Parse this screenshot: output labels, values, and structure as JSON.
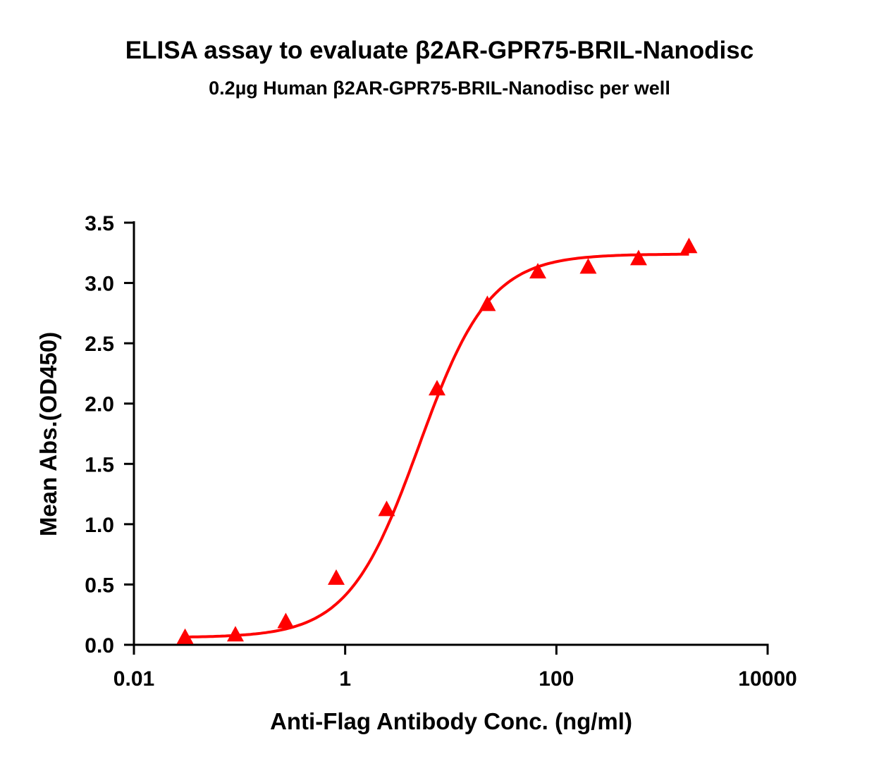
{
  "chart_data": {
    "type": "scatter",
    "title": "ELISA assay to evaluate β2AR-GPR75-BRIL-Nanodisc",
    "subtitle": "0.2µg Human β2AR-GPR75-BRIL-Nanodisc per well",
    "xlabel": "Anti-Flag Antibody Conc. (ng/ml)",
    "ylabel": "Mean Abs.(OD450)",
    "xscale": "log",
    "xlim": [
      0.01,
      10000
    ],
    "ylim": [
      0,
      3.5
    ],
    "xticks": [
      "0.01",
      "1",
      "100",
      "10000"
    ],
    "yticks": [
      "0.0",
      "0.5",
      "1.0",
      "1.5",
      "2.0",
      "2.5",
      "3.0",
      "3.5"
    ],
    "grid": false,
    "marker": "triangle",
    "color": "#ff0000",
    "series": [
      {
        "x": [
          0.0305,
          0.0914,
          0.274,
          0.823,
          2.47,
          7.41,
          22.2,
          66.7,
          200,
          600,
          1800
        ],
        "y": [
          0.06,
          0.08,
          0.19,
          0.55,
          1.12,
          2.12,
          2.82,
          3.09,
          3.13,
          3.2,
          3.3
        ]
      }
    ],
    "fit": {
      "model": "4PL",
      "bottom": 0.06,
      "top": 3.24,
      "ec50": 5.0,
      "hill": 1.3
    }
  }
}
